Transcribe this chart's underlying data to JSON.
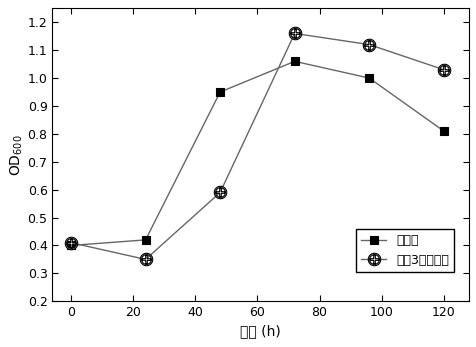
{
  "x": [
    0,
    24,
    48,
    72,
    96,
    120
  ],
  "series1_y": [
    0.4,
    0.42,
    0.95,
    1.06,
    1.0,
    0.81
  ],
  "series2_y": [
    0.41,
    0.35,
    0.59,
    1.16,
    1.12,
    1.03
  ],
  "series1_label": "不鼓泡",
  "series2_label": "间隔3小时鼓泡",
  "xlabel": "时间 (h)",
  "ylabel": "OD",
  "ylabel_sub": "600",
  "xlim": [
    -6,
    128
  ],
  "ylim": [
    0.2,
    1.25
  ],
  "xticks": [
    0,
    20,
    40,
    60,
    80,
    100,
    120
  ],
  "yticks": [
    0.2,
    0.3,
    0.4,
    0.5,
    0.6,
    0.7,
    0.8,
    0.9,
    1.0,
    1.1,
    1.2
  ],
  "line_color": "#666666",
  "background_color": "#ffffff"
}
